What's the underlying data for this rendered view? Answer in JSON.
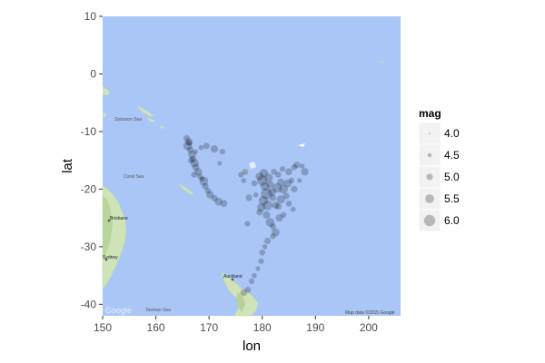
{
  "chart_data": {
    "type": "scatter",
    "xlabel": "lon",
    "ylabel": "lat",
    "xlim": [
      150,
      206
    ],
    "ylim": [
      -42,
      10
    ],
    "x_ticks": [
      150,
      160,
      170,
      180,
      190,
      200
    ],
    "y_ticks": [
      10,
      0,
      -10,
      -20,
      -30,
      -40
    ],
    "legend": {
      "title": "mag",
      "position": "right",
      "values": [
        4.0,
        4.5,
        5.0,
        5.5,
        6.0
      ],
      "labels": [
        "4.0",
        "4.5",
        "5.0",
        "5.5",
        "6.0"
      ]
    },
    "series": [
      {
        "points": [
          {
            "lon": 165.8,
            "lat": -11.2,
            "mag": 5.0
          },
          {
            "lon": 166.2,
            "lat": -11.8,
            "mag": 5.2
          },
          {
            "lon": 166.0,
            "lat": -12.5,
            "mag": 5.5
          },
          {
            "lon": 166.5,
            "lat": -13.2,
            "mag": 5.0
          },
          {
            "lon": 166.8,
            "lat": -14.0,
            "mag": 5.3
          },
          {
            "lon": 167.0,
            "lat": -14.8,
            "mag": 5.0
          },
          {
            "lon": 167.3,
            "lat": -15.5,
            "mag": 5.4
          },
          {
            "lon": 167.5,
            "lat": -16.2,
            "mag": 5.1
          },
          {
            "lon": 168.0,
            "lat": -17.0,
            "mag": 5.2
          },
          {
            "lon": 168.3,
            "lat": -17.8,
            "mag": 4.8
          },
          {
            "lon": 169.0,
            "lat": -18.6,
            "mag": 5.5
          },
          {
            "lon": 169.3,
            "lat": -19.5,
            "mag": 5.0
          },
          {
            "lon": 169.8,
            "lat": -20.3,
            "mag": 4.9
          },
          {
            "lon": 170.2,
            "lat": -21.0,
            "mag": 5.2
          },
          {
            "lon": 171.0,
            "lat": -21.6,
            "mag": 5.0
          },
          {
            "lon": 171.8,
            "lat": -22.2,
            "mag": 5.3
          },
          {
            "lon": 172.8,
            "lat": -22.5,
            "mag": 5.1
          },
          {
            "lon": 166.3,
            "lat": -12.0,
            "mag": 4.8
          },
          {
            "lon": 166.6,
            "lat": -15.0,
            "mag": 4.9
          },
          {
            "lon": 167.5,
            "lat": -13.5,
            "mag": 4.6
          },
          {
            "lon": 168.5,
            "lat": -12.8,
            "mag": 4.7
          },
          {
            "lon": 169.5,
            "lat": -12.5,
            "mag": 5.0
          },
          {
            "lon": 171.0,
            "lat": -13.0,
            "mag": 5.2
          },
          {
            "lon": 172.5,
            "lat": -13.5,
            "mag": 4.8
          },
          {
            "lon": 167.2,
            "lat": -17.5,
            "mag": 4.9
          },
          {
            "lon": 168.7,
            "lat": -18.2,
            "mag": 4.7
          },
          {
            "lon": 172.0,
            "lat": -15.5,
            "mag": 4.6
          },
          {
            "lon": 176.0,
            "lat": -17.5,
            "mag": 4.8
          },
          {
            "lon": 176.5,
            "lat": -18.5,
            "mag": 4.7
          },
          {
            "lon": 176.8,
            "lat": -17.0,
            "mag": 4.9
          },
          {
            "lon": 177.5,
            "lat": -21.5,
            "mag": 5.0
          },
          {
            "lon": 177.2,
            "lat": -26.0,
            "mag": 4.8
          },
          {
            "lon": 178.5,
            "lat": -19.0,
            "mag": 4.9
          },
          {
            "lon": 178.8,
            "lat": -21.0,
            "mag": 4.7
          },
          {
            "lon": 179.5,
            "lat": -17.8,
            "mag": 5.3
          },
          {
            "lon": 180.0,
            "lat": -18.5,
            "mag": 5.8
          },
          {
            "lon": 180.5,
            "lat": -19.5,
            "mag": 5.5
          },
          {
            "lon": 180.8,
            "lat": -20.8,
            "mag": 6.0
          },
          {
            "lon": 180.2,
            "lat": -22.0,
            "mag": 5.6
          },
          {
            "lon": 179.8,
            "lat": -23.2,
            "mag": 5.4
          },
          {
            "lon": 179.5,
            "lat": -24.0,
            "mag": 5.0
          },
          {
            "lon": 181.2,
            "lat": -18.0,
            "mag": 5.4
          },
          {
            "lon": 181.5,
            "lat": -19.2,
            "mag": 5.2
          },
          {
            "lon": 181.8,
            "lat": -20.5,
            "mag": 5.3
          },
          {
            "lon": 182.0,
            "lat": -21.5,
            "mag": 5.0
          },
          {
            "lon": 182.5,
            "lat": -22.8,
            "mag": 5.1
          },
          {
            "lon": 183.0,
            "lat": -17.5,
            "mag": 4.9
          },
          {
            "lon": 183.5,
            "lat": -18.8,
            "mag": 5.2
          },
          {
            "lon": 184.0,
            "lat": -20.0,
            "mag": 5.5
          },
          {
            "lon": 184.5,
            "lat": -21.2,
            "mag": 5.0
          },
          {
            "lon": 185.0,
            "lat": -17.0,
            "mag": 5.1
          },
          {
            "lon": 185.5,
            "lat": -18.5,
            "mag": 4.8
          },
          {
            "lon": 186.0,
            "lat": -16.2,
            "mag": 4.9
          },
          {
            "lon": 186.5,
            "lat": -15.8,
            "mag": 5.0
          },
          {
            "lon": 187.5,
            "lat": -16.0,
            "mag": 4.7
          },
          {
            "lon": 188.0,
            "lat": -17.0,
            "mag": 5.2
          },
          {
            "lon": 183.0,
            "lat": -23.0,
            "mag": 5.0
          },
          {
            "lon": 183.2,
            "lat": -25.0,
            "mag": 5.2
          },
          {
            "lon": 182.0,
            "lat": -26.5,
            "mag": 4.9
          },
          {
            "lon": 182.5,
            "lat": -27.5,
            "mag": 5.3
          },
          {
            "lon": 182.0,
            "lat": -28.2,
            "mag": 4.8
          },
          {
            "lon": 181.0,
            "lat": -29.0,
            "mag": 5.0
          },
          {
            "lon": 180.5,
            "lat": -30.0,
            "mag": 4.7
          },
          {
            "lon": 180.0,
            "lat": -31.0,
            "mag": 4.9
          },
          {
            "lon": 179.8,
            "lat": -32.5,
            "mag": 4.8
          },
          {
            "lon": 179.2,
            "lat": -33.8,
            "mag": 4.6
          },
          {
            "lon": 178.5,
            "lat": -35.0,
            "mag": 4.7
          },
          {
            "lon": 178.0,
            "lat": -36.0,
            "mag": 4.8
          },
          {
            "lon": 177.3,
            "lat": -37.5,
            "mag": 4.9
          },
          {
            "lon": 176.5,
            "lat": -38.0,
            "mag": 5.0
          },
          {
            "lon": 184.0,
            "lat": -24.5,
            "mag": 4.8
          },
          {
            "lon": 185.0,
            "lat": -22.5,
            "mag": 4.9
          },
          {
            "lon": 186.0,
            "lat": -20.0,
            "mag": 5.0
          },
          {
            "lon": 187.0,
            "lat": -18.5,
            "mag": 4.6
          },
          {
            "lon": 181.5,
            "lat": -25.8,
            "mag": 5.5
          },
          {
            "lon": 180.8,
            "lat": -24.5,
            "mag": 5.2
          },
          {
            "lon": 184.8,
            "lat": -19.0,
            "mag": 5.3
          },
          {
            "lon": 182.8,
            "lat": -19.8,
            "mag": 5.6
          },
          {
            "lon": 181.0,
            "lat": -22.8,
            "mag": 5.7
          },
          {
            "lon": 180.3,
            "lat": -17.2,
            "mag": 5.4
          },
          {
            "lon": 183.8,
            "lat": -16.5,
            "mag": 4.8
          },
          {
            "lon": 185.8,
            "lat": -23.5,
            "mag": 4.7
          },
          {
            "lon": 183.5,
            "lat": -21.8,
            "mag": 5.4
          },
          {
            "lon": 182.2,
            "lat": -17.0,
            "mag": 4.9
          }
        ]
      }
    ]
  },
  "map_labels": {
    "solomon_sea": "Solomon Sea",
    "coral_sea": "Coral Sea",
    "tasman_sea": "Tasman Sea",
    "brisbane": "Brisbane",
    "sydney": "Sydney",
    "auckland": "Auckland"
  },
  "attribution": {
    "credit": "Map data ©2015 Google",
    "logo": "Google"
  },
  "colors": {
    "ocean": "#a9c6f7",
    "land": "#cfe3b8",
    "land_dark": "#b4d29a",
    "point": "#000000",
    "legend_point": "#b8b8b8"
  }
}
